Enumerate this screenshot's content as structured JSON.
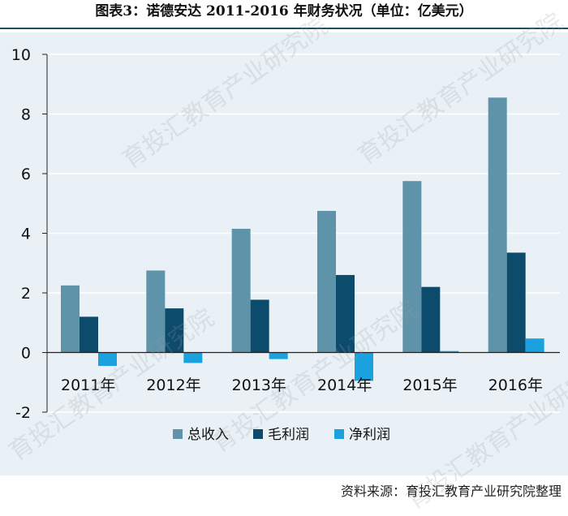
{
  "title": "图表3：诺德安达 2011-2016 年财务状况（单位：亿美元）",
  "source": "资料来源：育投汇教育产业研究院整理",
  "watermark": "育投汇教育产业研究院",
  "colors": {
    "background": "#e9f1f6",
    "title_rule": "#1f4e6b",
    "gridline": "#ffffff"
  },
  "chart_data": {
    "type": "bar",
    "categories": [
      "2011年",
      "2012年",
      "2013年",
      "2014年",
      "2015年",
      "2016年"
    ],
    "series": [
      {
        "name": "总收入",
        "color": "#5f93a9",
        "values": [
          2.25,
          2.75,
          4.15,
          4.75,
          5.75,
          8.55
        ]
      },
      {
        "name": "毛利润",
        "color": "#0d4b6d",
        "values": [
          1.2,
          1.48,
          1.77,
          2.6,
          2.2,
          3.35
        ]
      },
      {
        "name": "净利润",
        "color": "#1ba1dd",
        "values": [
          -0.45,
          -0.35,
          -0.22,
          -0.95,
          0.05,
          0.47
        ]
      }
    ],
    "yticks": [
      "10",
      "8",
      "6",
      "4",
      "2",
      "0",
      "-2"
    ],
    "ylim": [
      -2,
      10
    ],
    "grid": true,
    "legend_position": "bottom",
    "xlabel": "",
    "ylabel": ""
  }
}
